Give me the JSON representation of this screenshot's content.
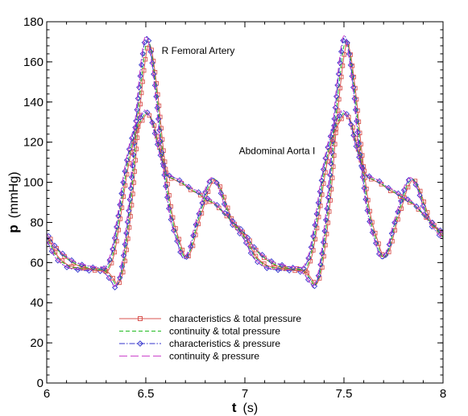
{
  "chart_data": {
    "type": "line",
    "title": "",
    "xlabel": {
      "symbol": "t",
      "unit": "(s)"
    },
    "ylabel": {
      "symbol": "p",
      "unit": "(mmHg)"
    },
    "xlim": [
      6,
      8
    ],
    "ylim": [
      0,
      180
    ],
    "xticks": [
      6,
      6.5,
      7,
      7.5,
      8
    ],
    "xtick_labels": [
      "6",
      "6.5",
      "7",
      "7.5",
      "8"
    ],
    "yticks": [
      0,
      20,
      40,
      60,
      80,
      100,
      120,
      140,
      160,
      180
    ],
    "ytick_labels": [
      "0",
      "20",
      "40",
      "60",
      "80",
      "100",
      "120",
      "140",
      "160",
      "180"
    ],
    "grid": false,
    "legend_position": "bottom-left",
    "annotations": [
      {
        "text": "R Femoral Artery",
        "x": 6.58,
        "y": 164
      },
      {
        "text": "Abdominal Aorta I",
        "x": 6.97,
        "y": 114
      }
    ],
    "legend": [
      {
        "label": "characteristics & total pressure",
        "color": "#d9534f",
        "dash": "solid",
        "marker": "square"
      },
      {
        "label": "continuity & total pressure",
        "color": "#22bb22",
        "dash": "dashed",
        "marker": "none"
      },
      {
        "label": "characteristics & pressure",
        "color": "#3333cc",
        "dash": "dashdot",
        "marker": "diamond"
      },
      {
        "label": "continuity & pressure",
        "color": "#cc44cc",
        "dash": "longdash",
        "marker": "none"
      }
    ],
    "curves": [
      {
        "name": "R Femoral Artery",
        "period": 1.0,
        "points": [
          [
            0,
            71
          ],
          [
            0.04,
            63
          ],
          [
            0.08,
            59
          ],
          [
            0.12,
            57
          ],
          [
            0.2,
            56
          ],
          [
            0.26,
            56
          ],
          [
            0.3,
            54
          ],
          [
            0.33,
            50
          ],
          [
            0.35,
            48
          ],
          [
            0.38,
            58
          ],
          [
            0.42,
            92
          ],
          [
            0.45,
            130
          ],
          [
            0.48,
            160
          ],
          [
            0.5,
            172
          ],
          [
            0.52,
            168
          ],
          [
            0.55,
            145
          ],
          [
            0.58,
            115
          ],
          [
            0.62,
            85
          ],
          [
            0.66,
            70
          ],
          [
            0.69,
            62
          ],
          [
            0.72,
            66
          ],
          [
            0.75,
            78
          ],
          [
            0.78,
            88
          ],
          [
            0.81,
            98
          ],
          [
            0.84,
            102
          ],
          [
            0.87,
            97
          ],
          [
            0.9,
            88
          ],
          [
            0.93,
            80
          ],
          [
            0.97,
            75
          ],
          [
            1.0,
            71
          ]
        ],
        "offsets": {
          "characteristics & total pressure": {
            "dx": 0.012,
            "dy": -0.3,
            "scale": 0.96
          },
          "continuity & total pressure": {
            "dx": 0.006,
            "dy": 0,
            "scale": 0.975
          },
          "characteristics & pressure": {
            "dx": 0,
            "dy": 0,
            "scale": 1.0
          },
          "continuity & pressure": {
            "dx": -0.004,
            "dy": 0.4,
            "scale": 1.0
          }
        }
      },
      {
        "name": "Abdominal Aorta I",
        "period": 1.0,
        "points": [
          [
            0,
            74
          ],
          [
            0.04,
            68
          ],
          [
            0.08,
            64
          ],
          [
            0.12,
            61
          ],
          [
            0.16,
            59
          ],
          [
            0.2,
            58
          ],
          [
            0.24,
            57
          ],
          [
            0.28,
            57
          ],
          [
            0.3,
            57
          ],
          [
            0.33,
            65
          ],
          [
            0.36,
            82
          ],
          [
            0.4,
            108
          ],
          [
            0.44,
            125
          ],
          [
            0.48,
            133
          ],
          [
            0.5,
            135
          ],
          [
            0.53,
            130
          ],
          [
            0.56,
            118
          ],
          [
            0.6,
            105
          ],
          [
            0.64,
            102
          ],
          [
            0.68,
            100
          ],
          [
            0.72,
            97
          ],
          [
            0.76,
            95
          ],
          [
            0.8,
            92
          ],
          [
            0.84,
            90
          ],
          [
            0.88,
            86
          ],
          [
            0.92,
            82
          ],
          [
            0.96,
            78
          ],
          [
            1.0,
            74
          ]
        ],
        "offsets": {
          "characteristics & total pressure": {
            "dx": 0.01,
            "dy": -1.0,
            "scale": 1.0
          },
          "continuity & total pressure": {
            "dx": 0.005,
            "dy": -0.5,
            "scale": 1.0
          },
          "characteristics & pressure": {
            "dx": 0,
            "dy": 0.5,
            "scale": 1.0
          },
          "continuity & pressure": {
            "dx": -0.004,
            "dy": 0.9,
            "scale": 1.0
          }
        }
      }
    ]
  }
}
